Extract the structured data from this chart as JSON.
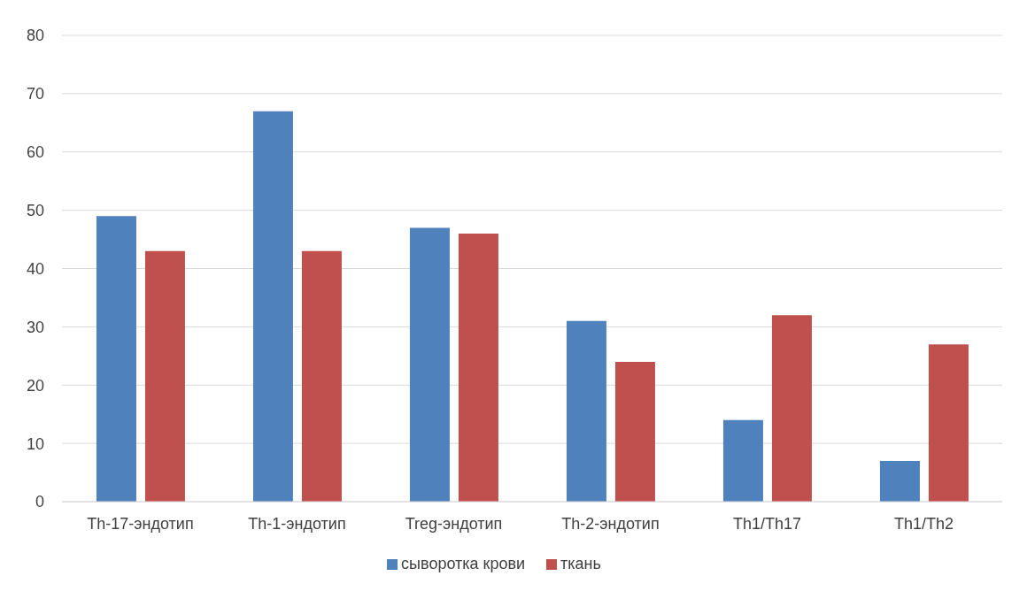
{
  "chart_data": {
    "type": "bar",
    "categories": [
      "Th-17-эндотип",
      "Th-1-эндотип",
      "Treg-эндотип",
      "Th-2-эндотип",
      "Th1/Th17",
      "Th1/Th2"
    ],
    "series": [
      {
        "name": "сыворотка крови",
        "color": "#4f81bd",
        "values": [
          49,
          67,
          47,
          31,
          14,
          7
        ]
      },
      {
        "name": "ткань",
        "color": "#c0504d",
        "values": [
          43,
          43,
          46,
          24,
          32,
          27
        ]
      }
    ],
    "ylim": [
      0,
      80
    ],
    "yticks": [
      0,
      10,
      20,
      30,
      40,
      50,
      60,
      70,
      80
    ],
    "grid": "y",
    "legend": "bottom"
  }
}
